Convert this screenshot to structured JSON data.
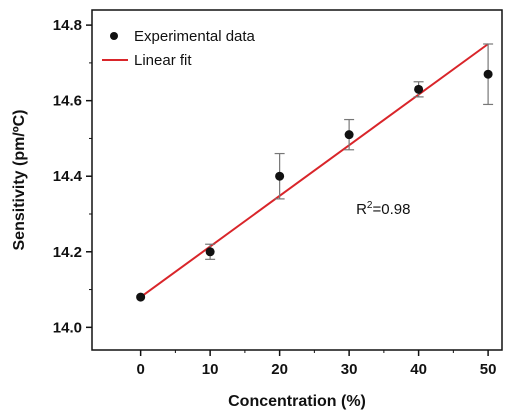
{
  "chart_data": {
    "type": "scatter",
    "title": "",
    "xlabel": "Concentration (%)",
    "ylabel": "Sensitivity (pm/ºC)",
    "xlim": [
      -7,
      52
    ],
    "ylim": [
      13.94,
      14.84
    ],
    "x_ticks": [
      0,
      10,
      20,
      30,
      40,
      50
    ],
    "y_ticks": [
      14.0,
      14.2,
      14.4,
      14.6,
      14.8
    ],
    "x_tick_labels": [
      "0",
      "10",
      "20",
      "30",
      "40",
      "50"
    ],
    "y_tick_labels": [
      "14.0",
      "14.2",
      "14.4",
      "14.6",
      "14.8"
    ],
    "grid": false,
    "legend_position": "top-left",
    "series": [
      {
        "name": "Experimental data",
        "kind": "points",
        "color": "#111111",
        "points": [
          {
            "x": 0,
            "y": 14.08,
            "err_low": 0,
            "err_high": 0
          },
          {
            "x": 10,
            "y": 14.2,
            "err_low": 0.02,
            "err_high": 0.02
          },
          {
            "x": 20,
            "y": 14.4,
            "err_low": 0.06,
            "err_high": 0.06
          },
          {
            "x": 30,
            "y": 14.51,
            "err_low": 0.04,
            "err_high": 0.04
          },
          {
            "x": 40,
            "y": 14.63,
            "err_low": 0.02,
            "err_high": 0.02
          },
          {
            "x": 50,
            "y": 14.67,
            "err_low": 0.08,
            "err_high": 0.08
          }
        ]
      },
      {
        "name": "Linear fit",
        "kind": "line",
        "color": "#d9252a",
        "x": [
          0,
          50
        ],
        "y": [
          14.08,
          14.75
        ]
      }
    ],
    "annotation": {
      "base": "R",
      "sup": "2",
      "value": "=0.98",
      "x": 31,
      "y": 14.3
    }
  }
}
